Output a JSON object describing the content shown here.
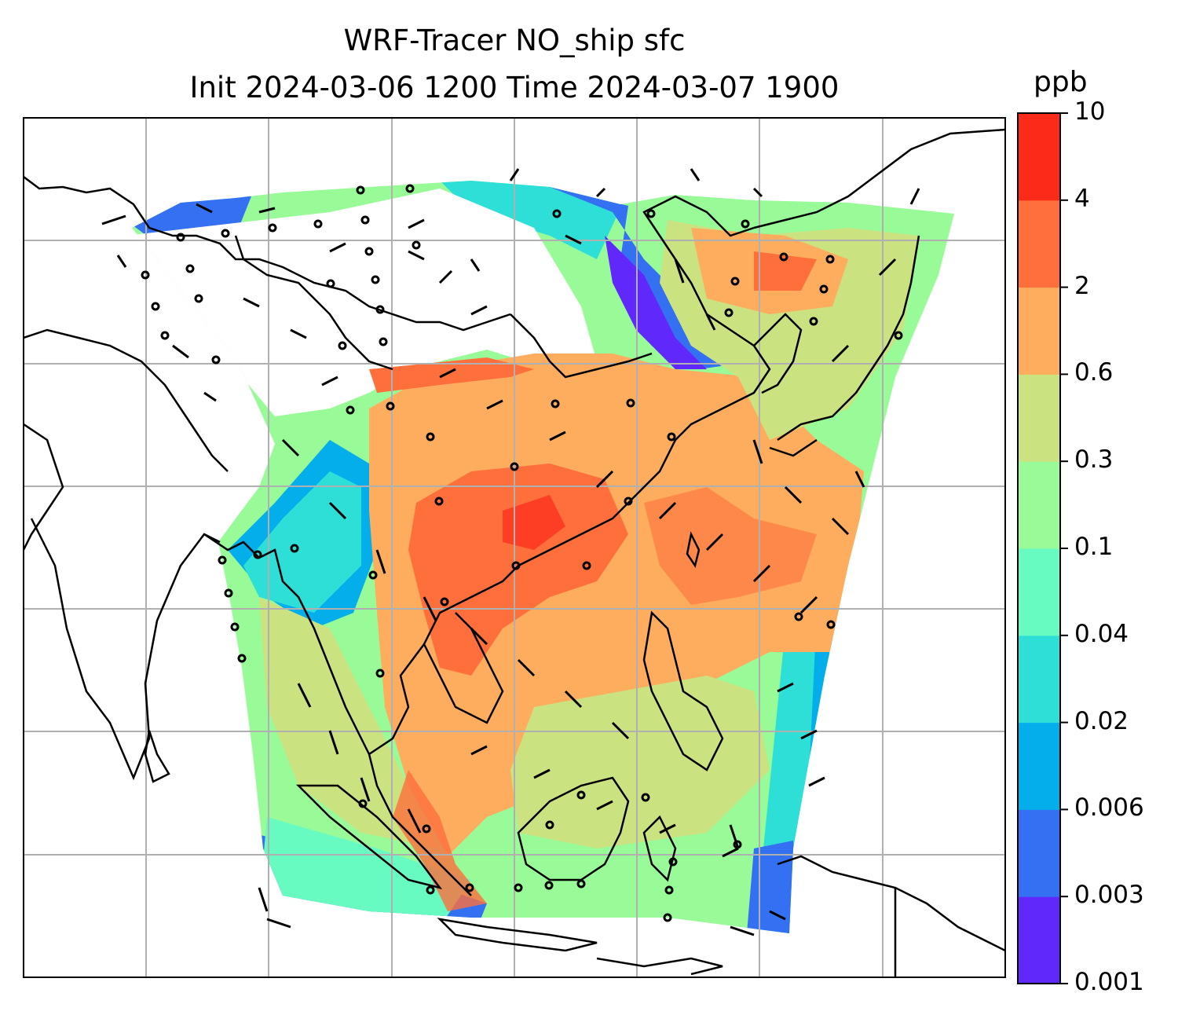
{
  "title": {
    "line1": "WRF-Tracer NO_ship sfc",
    "line2": "Init 2024-03-06 1200 Time 2024-03-07 1900"
  },
  "colorbar": {
    "unit": "ppb",
    "levels": [
      "0.001",
      "0.003",
      "0.006",
      "0.02",
      "0.04",
      "0.1",
      "0.3",
      "0.6",
      "2",
      "4",
      "10"
    ],
    "colors": [
      "#6128fb",
      "#3370f2",
      "#03aeea",
      "#2edfd8",
      "#67fbc2",
      "#98fb98",
      "#cbe281",
      "#fead5e",
      "#fe6f3c",
      "#fc2a19"
    ]
  },
  "map": {
    "grid": "on",
    "colors": {
      "no_data": "#ffffff",
      "coastline": "#000000",
      "gridline": "#b0b0b0"
    }
  }
}
